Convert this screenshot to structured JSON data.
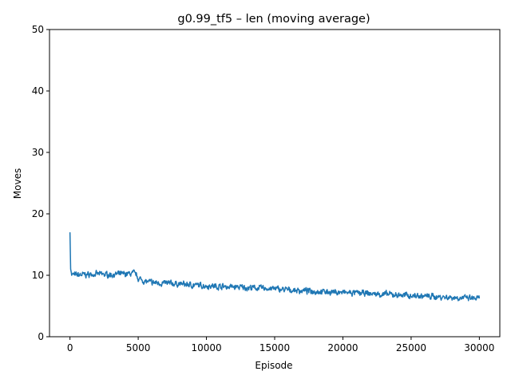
{
  "chart_data": {
    "type": "line",
    "title": "g0.99_tf5 – len (moving average)",
    "xlabel": "Episode",
    "ylabel": "Moves",
    "xlim": [
      -1500,
      31500
    ],
    "ylim": [
      0,
      50
    ],
    "xticks": [
      0,
      5000,
      10000,
      15000,
      20000,
      25000,
      30000
    ],
    "yticks": [
      0,
      10,
      20,
      30,
      40,
      50
    ],
    "grid": false,
    "series": [
      {
        "color": "#1f77b4",
        "trend": {
          "x": [
            0,
            50,
            150,
            400,
            1000,
            2000,
            3000,
            4000,
            4800,
            5000,
            5500,
            6000,
            7000,
            8000,
            9000,
            10000,
            11000,
            12000,
            13000,
            14000,
            15000,
            16000,
            17000,
            18000,
            19000,
            20000,
            21000,
            22000,
            23000,
            24000,
            25000,
            26000,
            27000,
            28000,
            29000,
            30000
          ],
          "y": [
            17.0,
            11.0,
            10.2,
            10.0,
            10.1,
            10.2,
            10.1,
            10.2,
            10.3,
            9.5,
            9.0,
            8.8,
            8.7,
            8.6,
            8.4,
            8.3,
            8.2,
            8.1,
            8.0,
            7.9,
            7.8,
            7.6,
            7.5,
            7.4,
            7.3,
            7.2,
            7.1,
            7.0,
            6.9,
            6.8,
            6.7,
            6.6,
            6.5,
            6.4,
            6.3,
            6.2
          ]
        },
        "noise_amplitude": 0.7
      }
    ]
  }
}
